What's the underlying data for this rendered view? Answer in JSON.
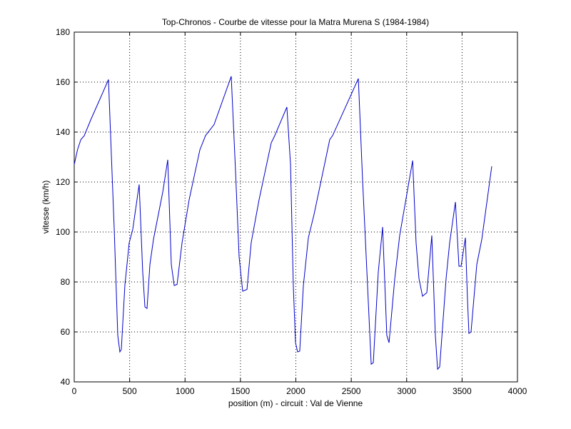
{
  "chart_data": {
    "type": "line",
    "title": "Top-Chronos - Courbe de vitesse pour la Matra Murena S (1984-1984)",
    "xlabel": "position (m) - circuit : Val de Vienne",
    "ylabel": "vitesse (km/h)",
    "x": [
      0,
      30,
      60,
      90,
      150,
      230,
      309,
      361,
      393,
      412,
      425,
      457,
      496,
      528,
      586,
      618,
      638,
      657,
      683,
      715,
      799,
      844,
      876,
      902,
      928,
      973,
      1037,
      1134,
      1185,
      1262,
      1417,
      1456,
      1488,
      1520,
      1559,
      1597,
      1668,
      1778,
      1810,
      1919,
      1952,
      1977,
      1997,
      2016,
      2035,
      2068,
      2113,
      2164,
      2306,
      2332,
      2564,
      2602,
      2647,
      2680,
      2699,
      2744,
      2783,
      2821,
      2841,
      2892,
      2937,
      3054,
      3085,
      3111,
      3143,
      3182,
      3227,
      3259,
      3279,
      3298,
      3356,
      3388,
      3440,
      3472,
      3491,
      3530,
      3549,
      3562,
      3581,
      3633,
      3678,
      3768
    ],
    "series": [
      {
        "color": "#0000c8",
        "values": [
          127,
          133,
          137,
          138.5,
          145,
          153,
          161,
          101,
          58.6,
          52,
          53,
          78.6,
          95.7,
          101,
          119,
          84,
          70,
          69.4,
          87,
          97,
          116,
          128.9,
          87,
          78.6,
          79,
          95.7,
          112.9,
          132.9,
          138.6,
          143,
          162.3,
          124,
          90,
          76.3,
          77,
          95.7,
          112.9,
          135.7,
          138.6,
          150,
          127,
          78.6,
          55.7,
          52,
          52.3,
          78.6,
          97.7,
          107,
          137,
          138.6,
          161.4,
          121,
          78.6,
          47.1,
          47.7,
          84,
          102,
          58.6,
          55.7,
          81,
          98.6,
          128.6,
          95.7,
          81.4,
          74.3,
          75.7,
          98.6,
          58.6,
          45.1,
          46,
          81.4,
          95.7,
          112,
          86.3,
          86.3,
          97.7,
          72.9,
          59.4,
          60,
          87,
          97,
          126.3
        ]
      }
    ],
    "xlim": [
      0,
      4000
    ],
    "xticks": [
      0,
      500,
      1000,
      1500,
      2000,
      2500,
      3000,
      3500,
      4000
    ],
    "ylim": [
      40,
      180
    ],
    "yticks": [
      40,
      60,
      80,
      100,
      120,
      140,
      160,
      180
    ],
    "grid": true
  }
}
